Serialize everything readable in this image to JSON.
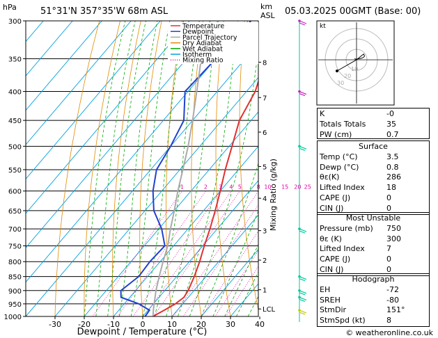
{
  "header": {
    "location": "51°31'N 357°35'W 68m ASL",
    "hpa_label": "hPa",
    "km_label": "km",
    "asl_label": "ASL",
    "datetime": "05.03.2025 00GMT (Base: 00)"
  },
  "footer": {
    "copyright": "© weatheronline.co.uk"
  },
  "hodograph": {
    "kt_label": "kt",
    "ring_labels": [
      "10",
      "20",
      "30"
    ]
  },
  "chart_data": {
    "type": "line",
    "xlabel": "Dewpoint / Temperature (°C)",
    "y2label": "Mixing Ratio (g/kg)",
    "x_ticks": [
      "-30",
      "-20",
      "-10",
      "0",
      "10",
      "20",
      "30",
      "40"
    ],
    "pressure_ticks": [
      "300",
      "350",
      "400",
      "450",
      "500",
      "550",
      "600",
      "650",
      "700",
      "750",
      "800",
      "850",
      "900",
      "950",
      "1000"
    ],
    "km_ticks": [
      {
        "km": "8",
        "p": 355
      },
      {
        "km": "7",
        "p": 410
      },
      {
        "km": "6",
        "p": 472
      },
      {
        "km": "5",
        "p": 543
      },
      {
        "km": "4",
        "p": 618
      },
      {
        "km": "3",
        "p": 705
      },
      {
        "km": "2",
        "p": 795
      },
      {
        "km": "1",
        "p": 897
      },
      {
        "km": "LCL",
        "p": 970
      }
    ],
    "mixing_ratio_labels": [
      "1",
      "2",
      "3",
      "4",
      "5",
      "8",
      "10",
      "15",
      "20",
      "25"
    ],
    "legend": [
      "Temperature",
      "Dewpoint",
      "Parcel Trajectory",
      "Dry Adiabat",
      "Wet Adiabat",
      "Isotherm",
      "Mixing Ratio"
    ],
    "colors": {
      "temperature": "#e03030",
      "dewpoint": "#2040d0",
      "parcel": "#aaaaaa",
      "dry_adiabat": "#e08a00",
      "wet_adiabat": "#00aa00",
      "isotherm": "#00a0e0",
      "mixing_ratio": "#e000a0",
      "wind": "#00c8a0"
    },
    "series": [
      {
        "name": "Temperature",
        "points": [
          [
            1000,
            3.5
          ],
          [
            975,
            5.5
          ],
          [
            950,
            7.5
          ],
          [
            925,
            8.5
          ],
          [
            900,
            8.0
          ],
          [
            850,
            6.0
          ],
          [
            800,
            3.5
          ],
          [
            750,
            0.5
          ],
          [
            700,
            -2.5
          ],
          [
            650,
            -6
          ],
          [
            600,
            -10
          ],
          [
            550,
            -14.5
          ],
          [
            500,
            -19
          ],
          [
            450,
            -24
          ],
          [
            400,
            -27
          ],
          [
            350,
            -33
          ],
          [
            300,
            -42
          ]
        ]
      },
      {
        "name": "Dewpoint",
        "points": [
          [
            1000,
            0.8
          ],
          [
            975,
            0.5
          ],
          [
            950,
            -5
          ],
          [
            925,
            -13
          ],
          [
            900,
            -15
          ],
          [
            850,
            -13
          ],
          [
            800,
            -13.5
          ],
          [
            750,
            -13
          ],
          [
            700,
            -19
          ],
          [
            650,
            -27
          ],
          [
            600,
            -33
          ],
          [
            550,
            -38
          ],
          [
            500,
            -40
          ],
          [
            450,
            -43
          ],
          [
            400,
            -51
          ],
          [
            350,
            -50
          ],
          [
            300,
            -49
          ]
        ]
      },
      {
        "name": "Parcel Trajectory",
        "points": [
          [
            1000,
            3.5
          ],
          [
            970,
            1.5
          ],
          [
            900,
            -3
          ],
          [
            850,
            -6
          ],
          [
            800,
            -9
          ],
          [
            750,
            -12
          ],
          [
            700,
            -16
          ],
          [
            650,
            -20
          ],
          [
            600,
            -24.5
          ],
          [
            550,
            -29
          ],
          [
            500,
            -34
          ],
          [
            450,
            -40
          ],
          [
            400,
            -47
          ],
          [
            350,
            -55
          ],
          [
            300,
            -63
          ]
        ]
      }
    ]
  },
  "indices": [
    {
      "label": "K",
      "value": "-0"
    },
    {
      "label": "Totals Totals",
      "value": "35"
    },
    {
      "label": "PW (cm)",
      "value": "0.7"
    }
  ],
  "surface": {
    "title": "Surface",
    "rows": [
      {
        "label": "Temp (°C)",
        "value": "3.5"
      },
      {
        "label": "Dewp (°C)",
        "value": "0.8"
      },
      {
        "label": "θε(K)",
        "value": "286"
      },
      {
        "label": "Lifted Index",
        "value": "18"
      },
      {
        "label": "CAPE (J)",
        "value": "0"
      },
      {
        "label": "CIN (J)",
        "value": "0"
      }
    ]
  },
  "most_unstable": {
    "title": "Most Unstable",
    "rows": [
      {
        "label": "Pressure (mb)",
        "value": "750"
      },
      {
        "label": "θε (K)",
        "value": "300"
      },
      {
        "label": "Lifted Index",
        "value": "7"
      },
      {
        "label": "CAPE (J)",
        "value": "0"
      },
      {
        "label": "CIN (J)",
        "value": "0"
      }
    ]
  },
  "hodograph_table": {
    "title": "Hodograph",
    "rows": [
      {
        "label": "EH",
        "value": "-72"
      },
      {
        "label": "SREH",
        "value": "-80"
      },
      {
        "label": "StmDir",
        "value": "151°"
      },
      {
        "label": "StmSpd (kt)",
        "value": "8"
      }
    ]
  }
}
